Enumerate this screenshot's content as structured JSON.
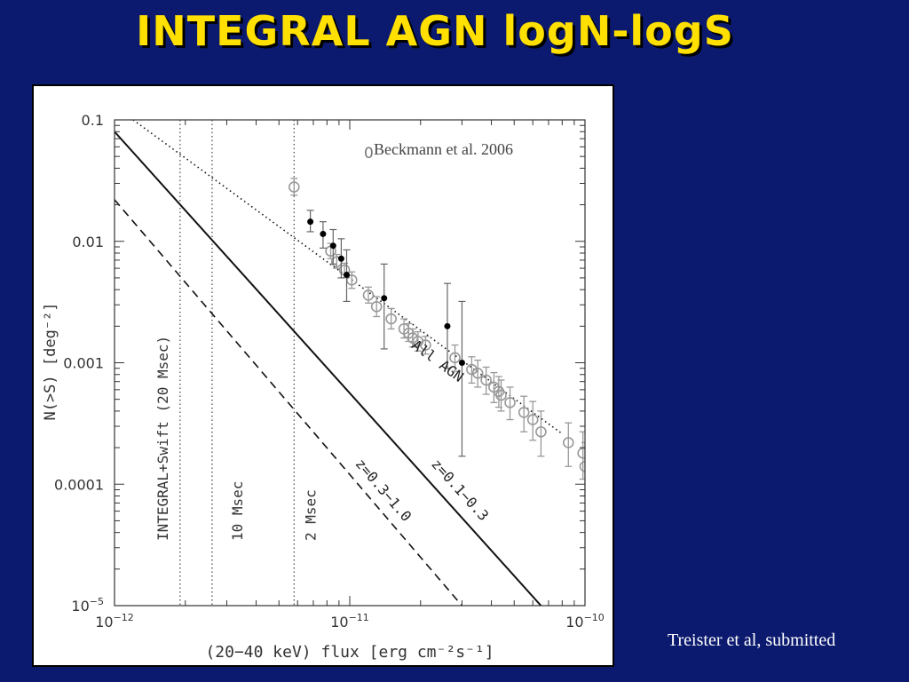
{
  "slide": {
    "title": "INTEGRAL AGN logN-logS",
    "credit": "Treister et al, submitted"
  },
  "colors": {
    "background": "#0b1a6e",
    "title": "#ffe000",
    "plot_bg": "#ffffff",
    "data_gray": "#999999"
  },
  "chart_data": {
    "type": "line",
    "title": "",
    "xlabel": "(20−40 keV) flux [erg cm⁻²s⁻¹]",
    "ylabel": "N(>S) [deg⁻²]",
    "xscale": "log",
    "yscale": "log",
    "xlim": [
      1e-12,
      1e-10
    ],
    "ylim": [
      1e-05,
      0.1
    ],
    "x_ticklabels": [
      {
        "value": 1e-12,
        "base": "10",
        "exp": "−12"
      },
      {
        "value": 1e-11,
        "base": "10",
        "exp": "−11"
      },
      {
        "value": 1e-10,
        "base": "10",
        "exp": "−10"
      }
    ],
    "y_ticklabels": [
      {
        "value": 0.1,
        "text": "0.1"
      },
      {
        "value": 0.01,
        "text": "0.01"
      },
      {
        "value": 0.001,
        "text": "0.001"
      },
      {
        "value": 0.0001,
        "text": "0.0001"
      },
      {
        "value": 1e-05,
        "base": "10",
        "exp": "−5"
      }
    ],
    "legend": {
      "label": "Beckmann et al. 2006",
      "marker": "open-circle",
      "placement": "top-right"
    },
    "vertical_lines": [
      {
        "x": 1.9e-12,
        "label": "INTEGRAL+Swift (20 Msec)"
      },
      {
        "x": 2.6e-12,
        "label": "10 Msec"
      },
      {
        "x": 5.8e-12,
        "label": "2 Msec"
      }
    ],
    "series": [
      {
        "name": "All AGN",
        "style": "dotted",
        "x": [
          1.2e-12,
          8e-11
        ],
        "y": [
          0.1,
          0.00026
        ]
      },
      {
        "name": "z=0.1−0.3",
        "style": "solid",
        "x": [
          1e-12,
          6.5e-11
        ],
        "y": [
          0.08,
          1e-05
        ]
      },
      {
        "name": "z=0.3−1.0",
        "style": "dashed",
        "x": [
          1e-12,
          3e-11
        ],
        "y": [
          0.022,
          1e-05
        ]
      }
    ],
    "points_filled": [
      {
        "x": 6.8e-12,
        "y": 0.0145,
        "ylo": 0.012,
        "yhi": 0.018
      },
      {
        "x": 7.7e-12,
        "y": 0.0115,
        "ylo": 0.0088,
        "yhi": 0.0145
      },
      {
        "x": 8.5e-12,
        "y": 0.0092,
        "ylo": 0.0065,
        "yhi": 0.0125
      },
      {
        "x": 9.2e-12,
        "y": 0.0072,
        "ylo": 0.005,
        "yhi": 0.0105
      },
      {
        "x": 9.7e-12,
        "y": 0.0053,
        "ylo": 0.0032,
        "yhi": 0.0085
      },
      {
        "x": 1.4e-11,
        "y": 0.0034,
        "ylo": 0.0013,
        "yhi": 0.0065
      },
      {
        "x": 2.6e-11,
        "y": 0.002,
        "ylo": 0.0009,
        "yhi": 0.0045
      },
      {
        "x": 3e-11,
        "y": 0.001,
        "ylo": 0.00017,
        "yhi": 0.0032
      }
    ],
    "points_open": [
      {
        "x": 5.8e-12,
        "y": 0.028,
        "ylo": 0.024,
        "yhi": 0.033
      },
      {
        "x": 8.3e-12,
        "y": 0.0083,
        "ylo": 0.0072,
        "yhi": 0.0096
      },
      {
        "x": 8.8e-12,
        "y": 0.0068,
        "ylo": 0.006,
        "yhi": 0.0078
      },
      {
        "x": 9.5e-12,
        "y": 0.0058,
        "ylo": 0.005,
        "yhi": 0.0066
      },
      {
        "x": 1.02e-11,
        "y": 0.0048,
        "ylo": 0.0041,
        "yhi": 0.0056
      },
      {
        "x": 1.2e-11,
        "y": 0.0036,
        "ylo": 0.0031,
        "yhi": 0.0042
      },
      {
        "x": 1.3e-11,
        "y": 0.0029,
        "ylo": 0.0024,
        "yhi": 0.0035
      },
      {
        "x": 1.5e-11,
        "y": 0.0023,
        "ylo": 0.0019,
        "yhi": 0.0028
      },
      {
        "x": 1.7e-11,
        "y": 0.0019,
        "ylo": 0.0016,
        "yhi": 0.0023
      },
      {
        "x": 1.78e-11,
        "y": 0.00175,
        "ylo": 0.0015,
        "yhi": 0.0021
      },
      {
        "x": 1.85e-11,
        "y": 0.0016,
        "ylo": 0.00135,
        "yhi": 0.0019
      },
      {
        "x": 1.95e-11,
        "y": 0.0015,
        "ylo": 0.00125,
        "yhi": 0.0018
      },
      {
        "x": 2.1e-11,
        "y": 0.0014,
        "ylo": 0.00118,
        "yhi": 0.00165
      },
      {
        "x": 2.8e-11,
        "y": 0.0011,
        "ylo": 0.00085,
        "yhi": 0.0014
      },
      {
        "x": 3.3e-11,
        "y": 0.00088,
        "ylo": 0.00068,
        "yhi": 0.00112
      },
      {
        "x": 3.5e-11,
        "y": 0.00082,
        "ylo": 0.00063,
        "yhi": 0.00105
      },
      {
        "x": 3.8e-11,
        "y": 0.00072,
        "ylo": 0.00055,
        "yhi": 0.00092
      },
      {
        "x": 4.1e-11,
        "y": 0.00063,
        "ylo": 0.00047,
        "yhi": 0.00083
      },
      {
        "x": 4.3e-11,
        "y": 0.00058,
        "ylo": 0.00043,
        "yhi": 0.00077
      },
      {
        "x": 4.4e-11,
        "y": 0.00054,
        "ylo": 0.0004,
        "yhi": 0.00072
      },
      {
        "x": 4.8e-11,
        "y": 0.00047,
        "ylo": 0.00034,
        "yhi": 0.00063
      },
      {
        "x": 5.5e-11,
        "y": 0.00039,
        "ylo": 0.00027,
        "yhi": 0.00053
      },
      {
        "x": 6e-11,
        "y": 0.00034,
        "ylo": 0.00023,
        "yhi": 0.00048
      },
      {
        "x": 6.5e-11,
        "y": 0.00027,
        "ylo": 0.00017,
        "yhi": 0.0004
      },
      {
        "x": 8.5e-11,
        "y": 0.00022,
        "ylo": 0.00014,
        "yhi": 0.00032
      },
      {
        "x": 9.8e-11,
        "y": 0.00018,
        "ylo": 0.00011,
        "yhi": 0.00027
      },
      {
        "x": 1e-10,
        "y": 0.00014,
        "ylo": 8e-05,
        "yhi": 0.00022
      }
    ]
  }
}
